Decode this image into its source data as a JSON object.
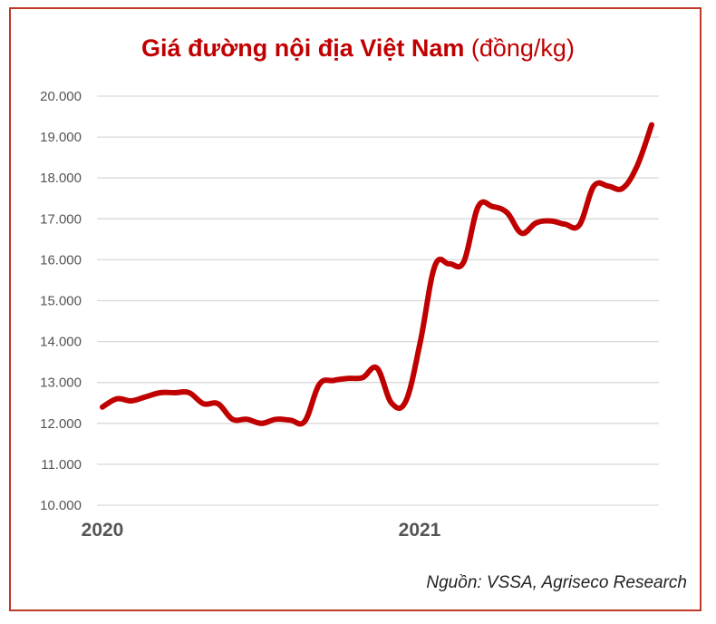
{
  "title": {
    "main": "Giá đường nội địa Việt Nam",
    "unit": "(đồng/kg)"
  },
  "source": "Nguồn: VSSA, Agriseco Research",
  "colors": {
    "line": "#c00000",
    "frame": "#c0392b",
    "grid": "#d9d9d9",
    "text": "#555555"
  },
  "chart_data": {
    "type": "line",
    "title": "Giá đường nội địa Việt Nam (đồng/kg)",
    "xlabel": "",
    "ylabel": "",
    "x_tick_labels": [
      "2020",
      "2021"
    ],
    "y_ticks": [
      10000,
      11000,
      12000,
      13000,
      14000,
      15000,
      16000,
      17000,
      18000,
      19000,
      20000
    ],
    "y_tick_labels": [
      "10.000",
      "11.000",
      "12.000",
      "13.000",
      "14.000",
      "15.000",
      "16.000",
      "17.000",
      "18.000",
      "19.000",
      "20.000"
    ],
    "ylim": [
      10000,
      20000
    ],
    "grid": true,
    "legend": "none",
    "series": [
      {
        "x": [
          "2020-01",
          "2020-01",
          "2020-02",
          "2020-02",
          "2020-03",
          "2020-03",
          "2020-04",
          "2020-04",
          "2020-05",
          "2020-05",
          "2020-06",
          "2020-06",
          "2020-07",
          "2020-07",
          "2020-08",
          "2020-08",
          "2020-09",
          "2020-09",
          "2020-10",
          "2020-10",
          "2020-11",
          "2020-11",
          "2020-12",
          "2020-12",
          "2021-01",
          "2021-01",
          "2021-02",
          "2021-02",
          "2021-03",
          "2021-03",
          "2021-04",
          "2021-04",
          "2021-05",
          "2021-05",
          "2021-06",
          "2021-06",
          "2021-07",
          "2021-07",
          "2021-08"
        ],
        "values": [
          12400,
          12600,
          12550,
          12650,
          12750,
          12750,
          12750,
          12480,
          12480,
          12100,
          12100,
          12000,
          12100,
          12080,
          12050,
          12950,
          13050,
          13100,
          13120,
          13350,
          12500,
          12550,
          14000,
          15850,
          15900,
          15950,
          17300,
          17300,
          17150,
          16650,
          16900,
          16950,
          16870,
          16850,
          17800,
          17800,
          17750,
          18300,
          19300
        ]
      }
    ]
  }
}
